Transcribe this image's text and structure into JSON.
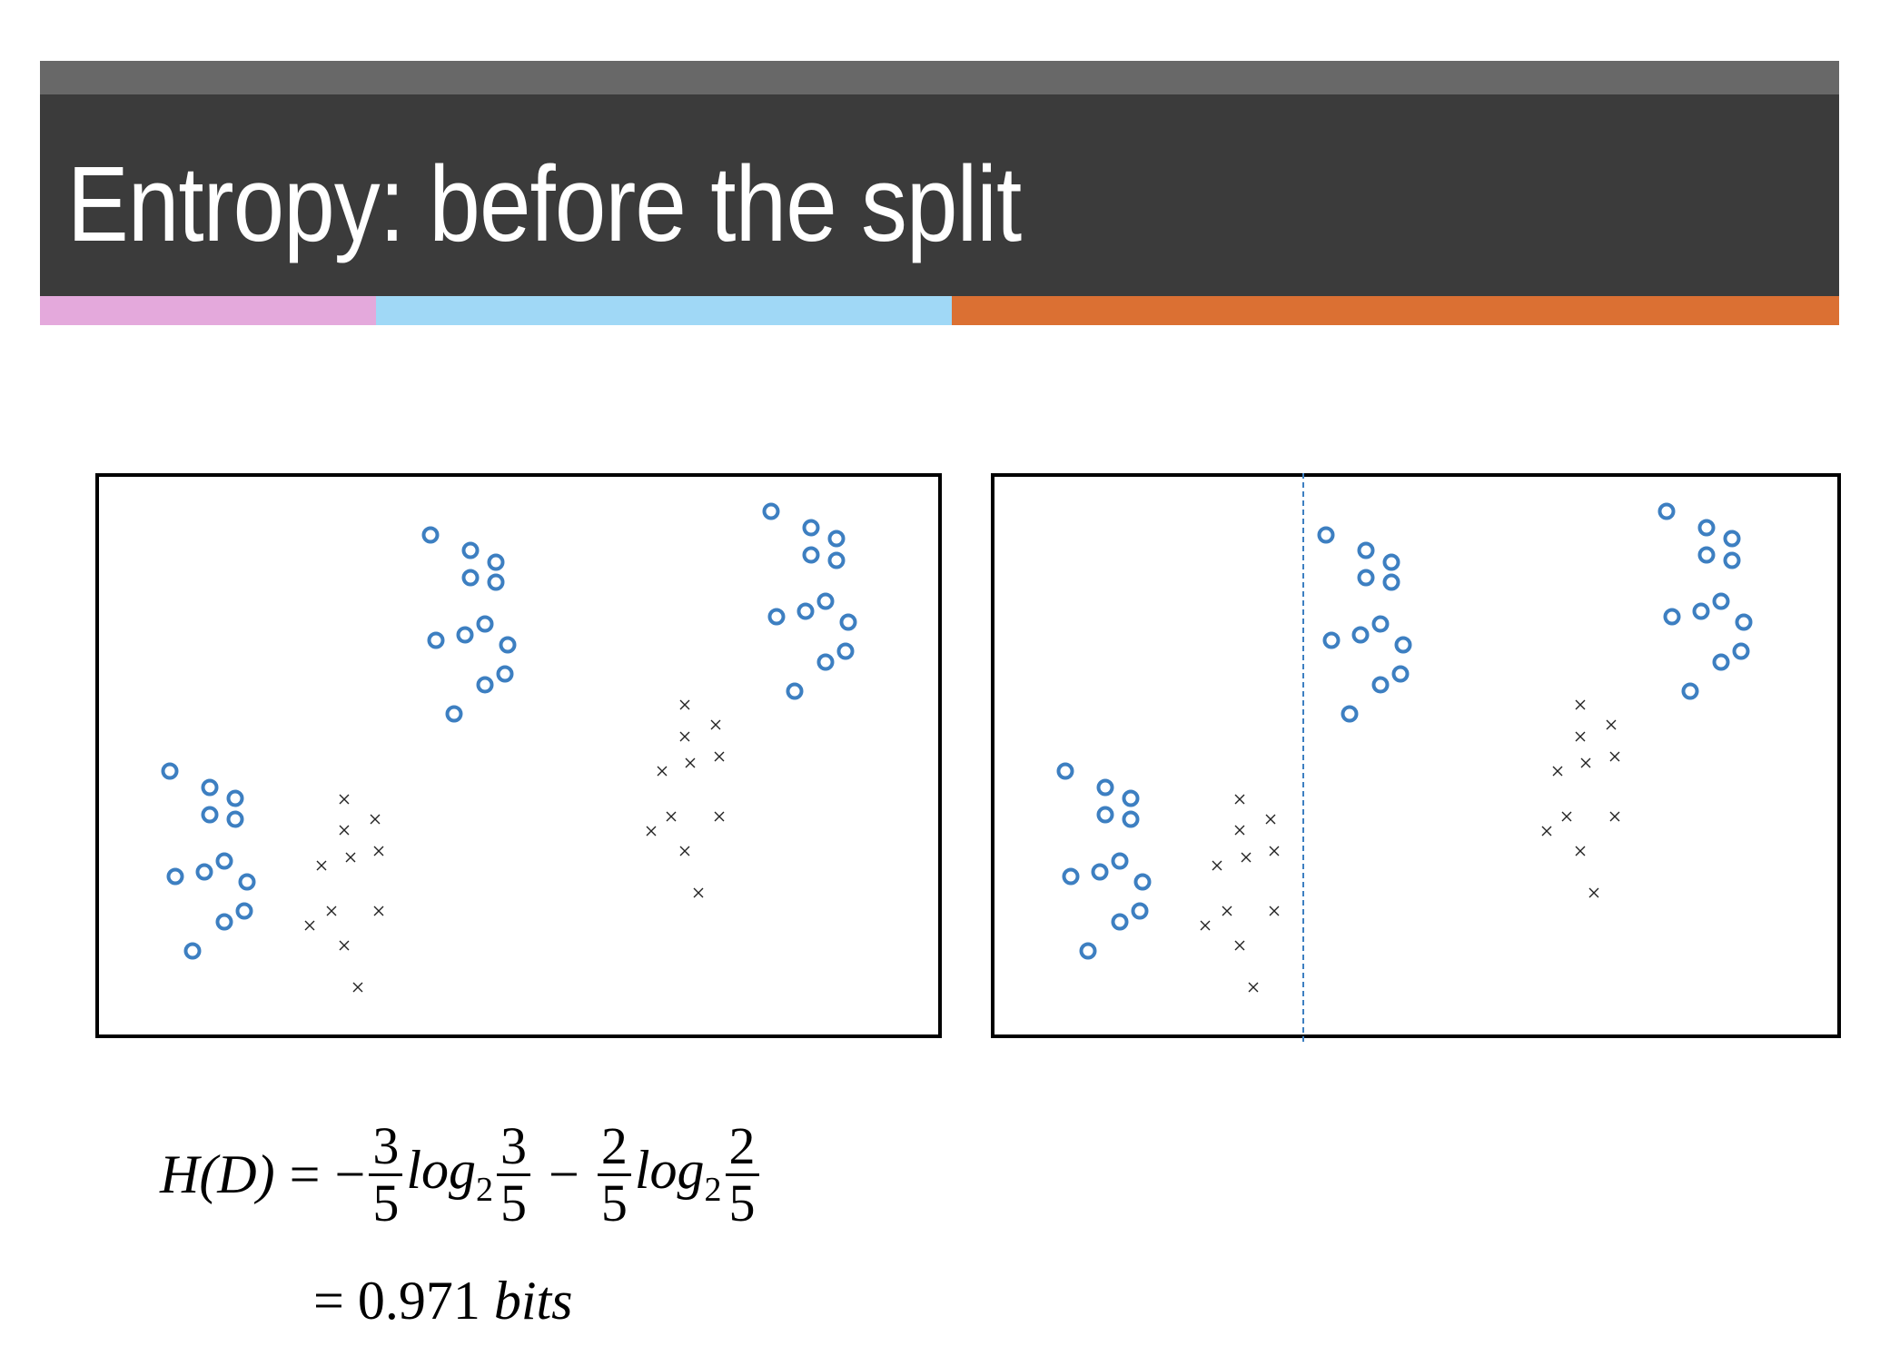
{
  "slide": {
    "title": "Entropy: before the split",
    "colors": {
      "header_top": "#686868",
      "header_main": "#3b3b3b",
      "stripe_pink": "#e4a9dc",
      "stripe_blue": "#a0d8f6",
      "stripe_orange": "#db7033",
      "marker_circle": "#3d7fc1",
      "marker_x": "#222222",
      "split_line": "#3d7fc1"
    }
  },
  "formula": {
    "lhs": "H(D)",
    "eq": "=",
    "minus1": "−",
    "frac1_num": "3",
    "frac1_den": "5",
    "log1": "log",
    "log1_sub": "2",
    "frac2_num": "3",
    "frac2_den": "5",
    "minus2": "−",
    "frac3_num": "2",
    "frac3_den": "5",
    "log2": "log",
    "log2_sub": "2",
    "frac4_num": "2",
    "frac4_den": "5",
    "result_eq": "=",
    "result_value": "0.971",
    "result_unit": "bits"
  },
  "chart_data": [
    {
      "type": "scatter",
      "title": "",
      "xlabel": "",
      "ylabel": "",
      "grid": false,
      "legend": null,
      "note": "Pixel coordinates relative to plot box top-left (932x622); y increases downward. No axes/ticks shown.",
      "series": [
        {
          "name": "circle (class o)",
          "marker": "o",
          "points": [
            [
              82,
              328
            ],
            [
              126,
              346
            ],
            [
              154,
              358
            ],
            [
              126,
              376
            ],
            [
              154,
              381
            ],
            [
              142,
              427
            ],
            [
              120,
              439
            ],
            [
              88,
              444
            ],
            [
              167,
              450
            ],
            [
              164,
              482
            ],
            [
              142,
              494
            ],
            [
              107,
              526
            ],
            [
              369,
              68
            ],
            [
              413,
              85
            ],
            [
              441,
              98
            ],
            [
              413,
              115
            ],
            [
              441,
              120
            ],
            [
              429,
              166
            ],
            [
              407,
              178
            ],
            [
              375,
              184
            ],
            [
              454,
              189
            ],
            [
              451,
              221
            ],
            [
              429,
              233
            ],
            [
              395,
              265
            ],
            [
              744,
              42
            ],
            [
              788,
              60
            ],
            [
              816,
              72
            ],
            [
              788,
              90
            ],
            [
              816,
              96
            ],
            [
              804,
              141
            ],
            [
              782,
              152
            ],
            [
              750,
              158
            ],
            [
              829,
              164
            ],
            [
              826,
              196
            ],
            [
              804,
              208
            ],
            [
              770,
              240
            ]
          ]
        },
        {
          "name": "cross (class x)",
          "marker": "x",
          "points": [
            [
              274,
              359
            ],
            [
              308,
              381
            ],
            [
              274,
              393
            ],
            [
              312,
              416
            ],
            [
              281,
              423
            ],
            [
              249,
              432
            ],
            [
              260,
              482
            ],
            [
              312,
              482
            ],
            [
              236,
              498
            ],
            [
              274,
              520
            ],
            [
              289,
              566
            ],
            [
              649,
              255
            ],
            [
              683,
              277
            ],
            [
              649,
              290
            ],
            [
              687,
              312
            ],
            [
              655,
              319
            ],
            [
              624,
              328
            ],
            [
              634,
              378
            ],
            [
              687,
              378
            ],
            [
              612,
              394
            ],
            [
              649,
              416
            ],
            [
              664,
              462
            ]
          ]
        }
      ],
      "counts": {
        "circles": 36,
        "crosses": 22
      }
    },
    {
      "type": "scatter",
      "title": "",
      "xlabel": "",
      "ylabel": "",
      "grid": false,
      "legend": null,
      "note": "Same points as left plot with a vertical dashed split line.",
      "split_line": {
        "orientation": "vertical",
        "x": 344,
        "style": "dashed"
      },
      "series": [
        {
          "name": "circle (class o)",
          "marker": "o",
          "same_as_left": true
        },
        {
          "name": "cross (class x)",
          "marker": "x",
          "same_as_left": true
        }
      ]
    }
  ]
}
